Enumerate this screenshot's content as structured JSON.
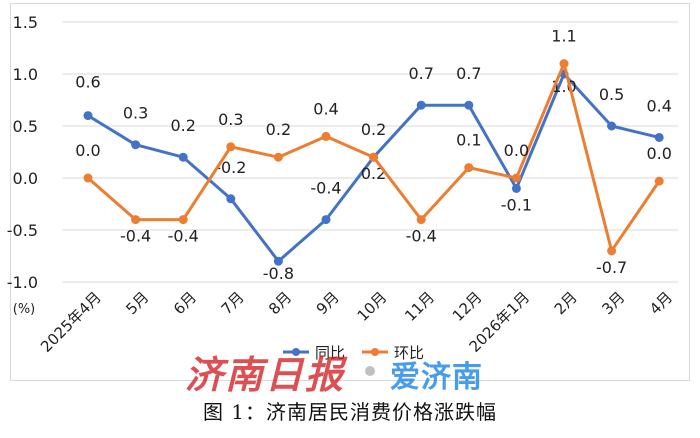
{
  "chart_data": {
    "type": "line",
    "title": "",
    "ylabel": "(%)",
    "xlabel": "",
    "ylim": [
      -1.0,
      1.5
    ],
    "yticks": [
      "1.5",
      "1.0",
      "0.5",
      "0.0",
      "-0.5",
      "-1.0"
    ],
    "ytick_values": [
      1.5,
      1.0,
      0.5,
      0.0,
      -0.5,
      -1.0
    ],
    "grid": true,
    "legend": "bottom",
    "categories": [
      "2025年4月",
      "5月",
      "6月",
      "7月",
      "8月",
      "9月",
      "10月",
      "11月",
      "12月",
      "2026年1月",
      "2月",
      "3月",
      "4月"
    ],
    "series": [
      {
        "name": "同比",
        "color": "#4472c4",
        "values": [
          0.6,
          0.32,
          0.2,
          -0.2,
          -0.8,
          -0.4,
          0.2,
          0.7,
          0.7,
          -0.1,
          1.0,
          0.5,
          0.39
        ],
        "labels": [
          "0.6",
          "0.3",
          "0.2",
          "-0.2",
          "-0.8",
          "-0.4",
          "0.2",
          "0.7",
          "0.7",
          "-0.1",
          "1.0",
          "0.5",
          "0.4"
        ]
      },
      {
        "name": "环比",
        "color": "#ed7d31",
        "values": [
          0.0,
          -0.4,
          -0.4,
          0.3,
          0.2,
          0.4,
          0.2,
          -0.4,
          0.1,
          0.0,
          1.1,
          -0.7,
          -0.03
        ],
        "labels": [
          "0.0",
          "-0.4",
          "-0.4",
          "0.3",
          "0.2",
          "0.4",
          "0.2",
          "-0.4",
          "0.1",
          "0.0",
          "1.1",
          "-0.7",
          "0.0"
        ]
      }
    ]
  },
  "watermark": {
    "brand_red": "济南日报",
    "brand_blue": "爱济南"
  },
  "caption": "图 1：济南居民消费价格涨跌幅"
}
